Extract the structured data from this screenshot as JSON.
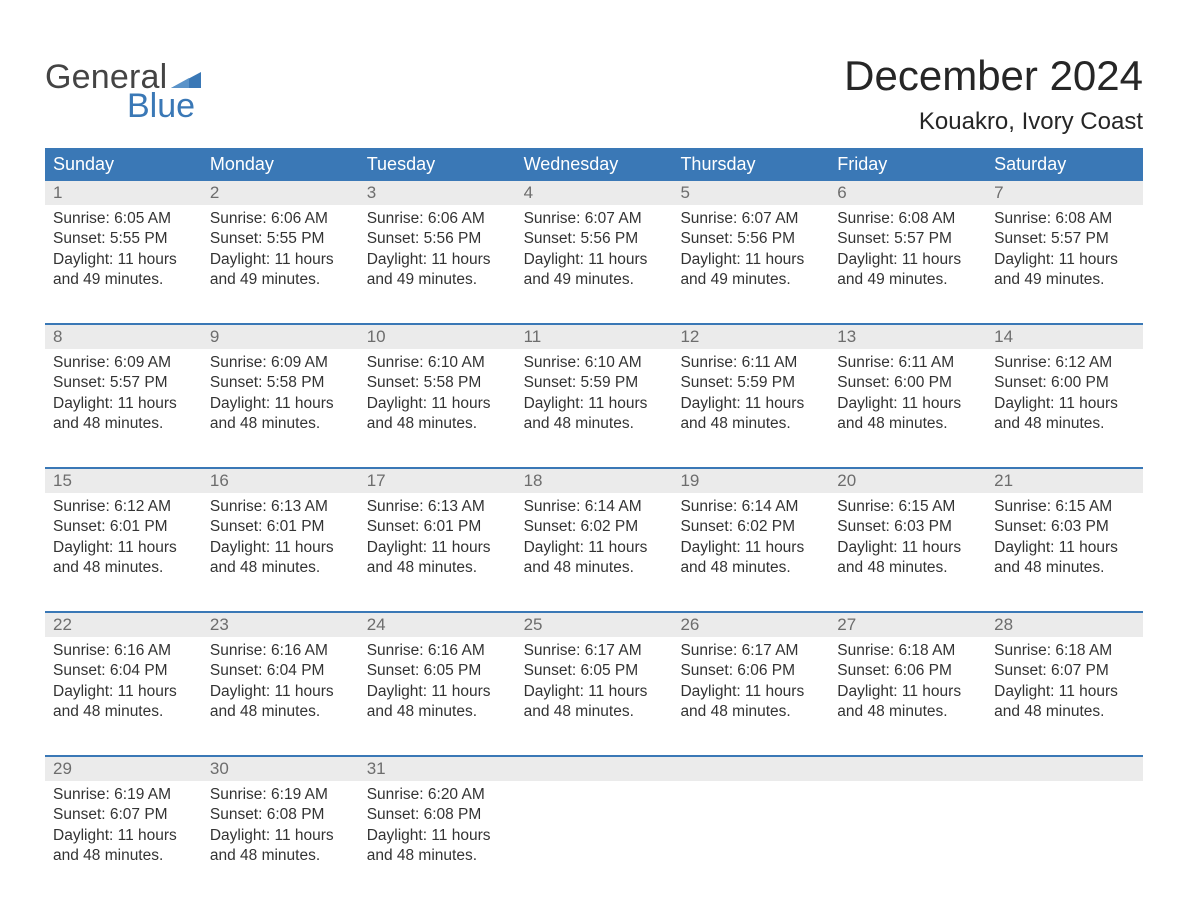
{
  "brand": {
    "part1": "General",
    "part2": "Blue"
  },
  "title": "December 2024",
  "location": "Kouakro, Ivory Coast",
  "colors": {
    "header_bg": "#3a78b6",
    "daynum_bg": "#ebebeb",
    "text": "#333333",
    "daynum_text": "#6d6d6d",
    "title_text": "#262626",
    "logo_gray": "#444444",
    "logo_blue": "#3a78b6",
    "page_bg": "#ffffff"
  },
  "typography": {
    "month_title_fontsize": 42,
    "location_fontsize": 24,
    "header_fontsize": 18,
    "daynum_fontsize": 17,
    "body_fontsize": 15.5,
    "logo_fontsize": 34
  },
  "dayNames": [
    "Sunday",
    "Monday",
    "Tuesday",
    "Wednesday",
    "Thursday",
    "Friday",
    "Saturday"
  ],
  "labels": {
    "sunrise": "Sunrise:",
    "sunset": "Sunset:",
    "daylight": "Daylight:"
  },
  "weeks": [
    [
      {
        "n": "1",
        "sr": "6:05 AM",
        "ss": "5:55 PM",
        "dl": "11 hours and 49 minutes."
      },
      {
        "n": "2",
        "sr": "6:06 AM",
        "ss": "5:55 PM",
        "dl": "11 hours and 49 minutes."
      },
      {
        "n": "3",
        "sr": "6:06 AM",
        "ss": "5:56 PM",
        "dl": "11 hours and 49 minutes."
      },
      {
        "n": "4",
        "sr": "6:07 AM",
        "ss": "5:56 PM",
        "dl": "11 hours and 49 minutes."
      },
      {
        "n": "5",
        "sr": "6:07 AM",
        "ss": "5:56 PM",
        "dl": "11 hours and 49 minutes."
      },
      {
        "n": "6",
        "sr": "6:08 AM",
        "ss": "5:57 PM",
        "dl": "11 hours and 49 minutes."
      },
      {
        "n": "7",
        "sr": "6:08 AM",
        "ss": "5:57 PM",
        "dl": "11 hours and 49 minutes."
      }
    ],
    [
      {
        "n": "8",
        "sr": "6:09 AM",
        "ss": "5:57 PM",
        "dl": "11 hours and 48 minutes."
      },
      {
        "n": "9",
        "sr": "6:09 AM",
        "ss": "5:58 PM",
        "dl": "11 hours and 48 minutes."
      },
      {
        "n": "10",
        "sr": "6:10 AM",
        "ss": "5:58 PM",
        "dl": "11 hours and 48 minutes."
      },
      {
        "n": "11",
        "sr": "6:10 AM",
        "ss": "5:59 PM",
        "dl": "11 hours and 48 minutes."
      },
      {
        "n": "12",
        "sr": "6:11 AM",
        "ss": "5:59 PM",
        "dl": "11 hours and 48 minutes."
      },
      {
        "n": "13",
        "sr": "6:11 AM",
        "ss": "6:00 PM",
        "dl": "11 hours and 48 minutes."
      },
      {
        "n": "14",
        "sr": "6:12 AM",
        "ss": "6:00 PM",
        "dl": "11 hours and 48 minutes."
      }
    ],
    [
      {
        "n": "15",
        "sr": "6:12 AM",
        "ss": "6:01 PM",
        "dl": "11 hours and 48 minutes."
      },
      {
        "n": "16",
        "sr": "6:13 AM",
        "ss": "6:01 PM",
        "dl": "11 hours and 48 minutes."
      },
      {
        "n": "17",
        "sr": "6:13 AM",
        "ss": "6:01 PM",
        "dl": "11 hours and 48 minutes."
      },
      {
        "n": "18",
        "sr": "6:14 AM",
        "ss": "6:02 PM",
        "dl": "11 hours and 48 minutes."
      },
      {
        "n": "19",
        "sr": "6:14 AM",
        "ss": "6:02 PM",
        "dl": "11 hours and 48 minutes."
      },
      {
        "n": "20",
        "sr": "6:15 AM",
        "ss": "6:03 PM",
        "dl": "11 hours and 48 minutes."
      },
      {
        "n": "21",
        "sr": "6:15 AM",
        "ss": "6:03 PM",
        "dl": "11 hours and 48 minutes."
      }
    ],
    [
      {
        "n": "22",
        "sr": "6:16 AM",
        "ss": "6:04 PM",
        "dl": "11 hours and 48 minutes."
      },
      {
        "n": "23",
        "sr": "6:16 AM",
        "ss": "6:04 PM",
        "dl": "11 hours and 48 minutes."
      },
      {
        "n": "24",
        "sr": "6:16 AM",
        "ss": "6:05 PM",
        "dl": "11 hours and 48 minutes."
      },
      {
        "n": "25",
        "sr": "6:17 AM",
        "ss": "6:05 PM",
        "dl": "11 hours and 48 minutes."
      },
      {
        "n": "26",
        "sr": "6:17 AM",
        "ss": "6:06 PM",
        "dl": "11 hours and 48 minutes."
      },
      {
        "n": "27",
        "sr": "6:18 AM",
        "ss": "6:06 PM",
        "dl": "11 hours and 48 minutes."
      },
      {
        "n": "28",
        "sr": "6:18 AM",
        "ss": "6:07 PM",
        "dl": "11 hours and 48 minutes."
      }
    ],
    [
      {
        "n": "29",
        "sr": "6:19 AM",
        "ss": "6:07 PM",
        "dl": "11 hours and 48 minutes."
      },
      {
        "n": "30",
        "sr": "6:19 AM",
        "ss": "6:08 PM",
        "dl": "11 hours and 48 minutes."
      },
      {
        "n": "31",
        "sr": "6:20 AM",
        "ss": "6:08 PM",
        "dl": "11 hours and 48 minutes."
      },
      null,
      null,
      null,
      null
    ]
  ]
}
